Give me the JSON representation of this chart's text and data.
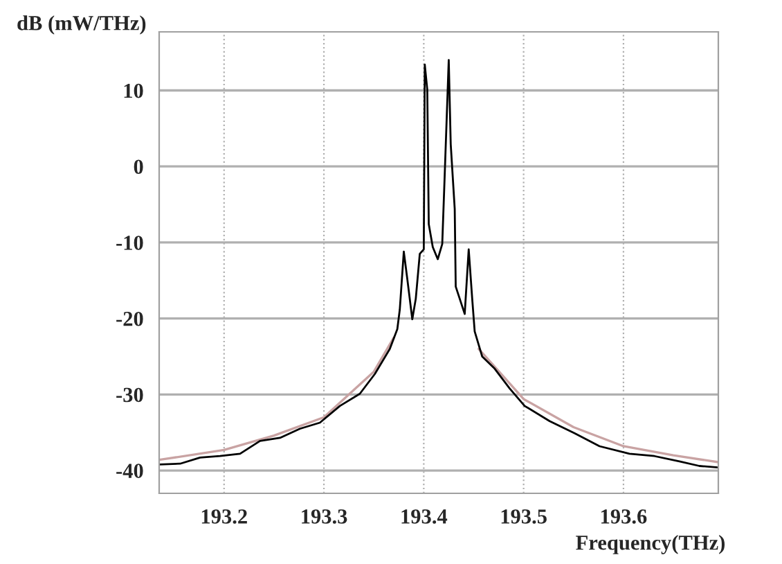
{
  "chart_data": {
    "type": "line",
    "xlabel": "Frequency(THz)",
    "ylabel": "dB (mW/THz)",
    "xlim": [
      193.135,
      193.695
    ],
    "ylim": [
      -43,
      17.7
    ],
    "xticks": [
      193.2,
      193.3,
      193.4,
      193.5,
      193.6
    ],
    "yticks": [
      -40,
      -30,
      -20,
      -10,
      0,
      10
    ],
    "grid": true,
    "legend": false,
    "series": [
      {
        "color": "#c9a3a3",
        "x": [
          193.135,
          193.2,
          193.25,
          193.3,
          193.35,
          193.37,
          193.38,
          193.39,
          193.4,
          193.41,
          193.425,
          193.44,
          193.445,
          193.455,
          193.5,
          193.55,
          193.6,
          193.65,
          193.695
        ],
        "values": [
          -38.6,
          -37.3,
          -35.4,
          -33.0,
          -27.0,
          -22.5,
          null,
          null,
          null,
          null,
          null,
          null,
          null,
          -24,
          -30.6,
          -34.3,
          -36.8,
          -38.0,
          -38.9
        ]
      },
      {
        "color": "#000000",
        "x": [
          193.135,
          193.156,
          193.176,
          193.196,
          193.216,
          193.236,
          193.256,
          193.276,
          193.296,
          193.316,
          193.336,
          193.351,
          193.366,
          193.3735,
          193.376,
          193.38,
          193.3835,
          193.3885,
          193.392,
          193.396,
          193.4,
          193.4005,
          193.401,
          193.4035,
          193.405,
          193.409,
          193.414,
          193.4185,
          193.421,
          193.425,
          193.427,
          193.431,
          193.432,
          193.441,
          193.445,
          193.4485,
          193.451,
          193.4585,
          193.471,
          193.486,
          193.501,
          193.526,
          193.551,
          193.576,
          193.606,
          193.631,
          193.656,
          193.676,
          193.6945
        ],
        "values": [
          -39.2,
          -39.1,
          -38.3,
          -38.1,
          -37.8,
          -36.1,
          -35.7,
          -34.5,
          -33.7,
          -31.5,
          -29.9,
          -27.3,
          -24.0,
          -21.4,
          -18.8,
          -11.2,
          -14.8,
          -20.1,
          -17.4,
          -11.5,
          -10.9,
          0.9,
          13.4,
          10.1,
          -7.6,
          -10.6,
          -12.2,
          -10.2,
          -1.0,
          14.0,
          2.9,
          -5.6,
          -15.8,
          -19.4,
          -10.9,
          -17.4,
          -21.7,
          -25.0,
          -26.6,
          -29.2,
          -31.5,
          -33.5,
          -35.1,
          -36.8,
          -37.8,
          -38.1,
          -38.8,
          -39.4,
          -39.6
        ]
      }
    ]
  }
}
